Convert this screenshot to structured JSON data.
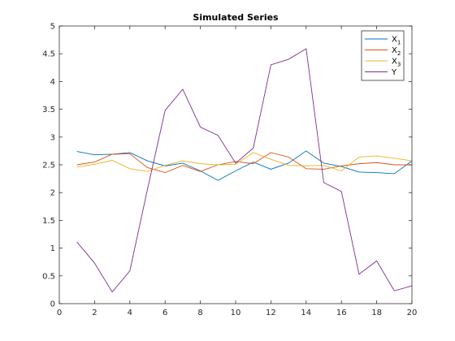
{
  "chart_data": {
    "type": "line",
    "title": "Simulated Series",
    "xlabel": "",
    "ylabel": "",
    "xlim": [
      0,
      20
    ],
    "ylim": [
      0,
      5
    ],
    "xticks": [
      "0",
      "2",
      "4",
      "6",
      "8",
      "10",
      "12",
      "14",
      "16",
      "18",
      "20"
    ],
    "yticks": [
      "0",
      "0.5",
      "1",
      "1.5",
      "2",
      "2.5",
      "3",
      "3.5",
      "4",
      "4.5",
      "5"
    ],
    "grid": false,
    "legend_position": "top-right",
    "x": [
      1,
      2,
      3,
      4,
      5,
      6,
      7,
      8,
      9,
      10,
      11,
      12,
      13,
      14,
      15,
      16,
      17,
      18,
      19,
      20
    ],
    "series": [
      {
        "name": "X",
        "subscript": "1",
        "color": "#0072BD",
        "values": [
          2.74,
          2.68,
          2.69,
          2.72,
          2.57,
          2.48,
          2.53,
          2.39,
          2.22,
          2.39,
          2.55,
          2.42,
          2.53,
          2.75,
          2.53,
          2.47,
          2.37,
          2.36,
          2.34,
          2.57
        ]
      },
      {
        "name": "X",
        "subscript": "2",
        "color": "#D95319",
        "values": [
          2.5,
          2.55,
          2.69,
          2.7,
          2.45,
          2.36,
          2.49,
          2.38,
          2.5,
          2.56,
          2.52,
          2.72,
          2.64,
          2.43,
          2.42,
          2.48,
          2.52,
          2.54,
          2.5,
          2.5
        ]
      },
      {
        "name": "X",
        "subscript": "3",
        "color": "#EDB120",
        "values": [
          2.46,
          2.51,
          2.58,
          2.43,
          2.38,
          2.49,
          2.57,
          2.52,
          2.5,
          2.51,
          2.72,
          2.6,
          2.49,
          2.48,
          2.49,
          2.39,
          2.64,
          2.66,
          2.62,
          2.57
        ]
      },
      {
        "name": "Y",
        "subscript": "",
        "color": "#7E2F8E",
        "values": [
          1.11,
          0.73,
          0.21,
          0.59,
          2.06,
          3.48,
          3.86,
          3.18,
          3.03,
          2.53,
          2.8,
          4.3,
          4.4,
          4.59,
          2.18,
          2.02,
          0.53,
          0.77,
          0.23,
          0.32
        ]
      }
    ]
  }
}
